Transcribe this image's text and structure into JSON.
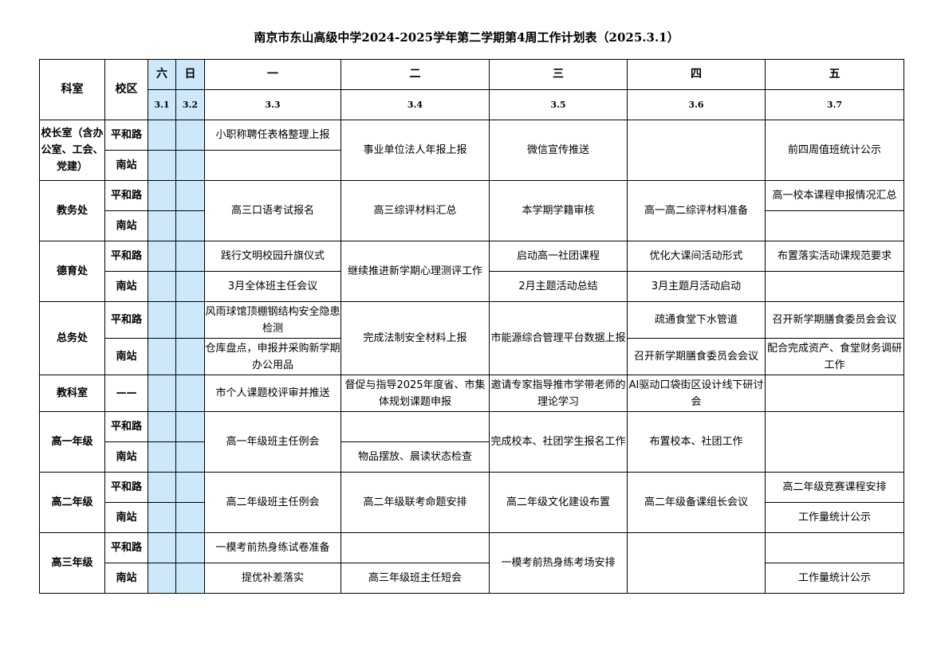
{
  "title": "南京市东山高级中学2024-2025学年第二学期第4周工作计划表（2025.3.1）",
  "header": {
    "dept_label": "科室",
    "campus_label": "校区",
    "days": [
      "六",
      "日",
      "一",
      "二",
      "三",
      "四",
      "五"
    ],
    "dates": [
      "3.1",
      "3.2",
      "3.3",
      "3.4",
      "3.5",
      "3.6",
      "3.7"
    ]
  },
  "colors": {
    "weekend_fill": "#cce8fa",
    "border": "#000000"
  },
  "rows": [
    {
      "dept": "校长室（含办公室、工会、党建）",
      "campuses": [
        "平和路",
        "南站"
      ],
      "cells": [
        {
          "top": "小职称聘任表格整理上报",
          "bottom": ""
        },
        {
          "merged": "事业单位法人年报上报"
        },
        {
          "merged": "微信宣传推送"
        },
        {
          "merged": ""
        },
        {
          "merged": "前四周值班统计公示"
        }
      ]
    },
    {
      "dept": "教务处",
      "campuses": [
        "平和路",
        "南站"
      ],
      "cells": [
        {
          "merged": "高三口语考试报名"
        },
        {
          "merged": "高三综评材料汇总"
        },
        {
          "merged": "本学期学籍审核"
        },
        {
          "merged": "高一高二综评材料准备"
        },
        {
          "top": "高一校本课程申报情况汇总",
          "bottom": ""
        }
      ]
    },
    {
      "dept": "德育处",
      "campuses": [
        "平和路",
        "南站"
      ],
      "cells": [
        {
          "top": "践行文明校园升旗仪式",
          "bottom": "3月全体班主任会议"
        },
        {
          "merged": "继续推进新学期心理测评工作"
        },
        {
          "top": "启动高一社团课程",
          "bottom": "2月主题活动总结"
        },
        {
          "top": "优化大课间活动形式",
          "bottom": "3月主题月活动启动"
        },
        {
          "top": "布置落实活动课规范要求",
          "bottom": ""
        }
      ]
    },
    {
      "dept": "总务处",
      "campuses": [
        "平和路",
        "南站"
      ],
      "tall": true,
      "cells": [
        {
          "top": "风雨球馆顶棚钢结构安全隐患检测",
          "bottom": "仓库盘点，申报并采购新学期办公用品"
        },
        {
          "merged": "完成法制安全材料上报"
        },
        {
          "merged": "市能源综合管理平台数据上报"
        },
        {
          "top": "疏通食堂下水管道",
          "bottom": "召开新学期膳食委员会会议"
        },
        {
          "top": "召开新学期膳食委员会会议",
          "bottom": "配合完成资产、食堂财务调研工作"
        }
      ]
    },
    {
      "dept": "教科室",
      "campuses": [
        "——"
      ],
      "tall": true,
      "cells": [
        {
          "merged": "市个人课题校评审并推送"
        },
        {
          "merged": "督促与指导2025年度省、市集体规划课题申报"
        },
        {
          "merged": "邀请专家指导推市学带老师的理论学习"
        },
        {
          "merged": "AI驱动口袋街区设计线下研讨会"
        },
        {
          "merged": ""
        }
      ]
    },
    {
      "dept": "高一年级",
      "campuses": [
        "平和路",
        "南站"
      ],
      "cells": [
        {
          "merged": "高一年级班主任例会"
        },
        {
          "top": "",
          "bottom": "物品摆放、晨读状态检查"
        },
        {
          "merged": "完成校本、社团学生报名工作"
        },
        {
          "merged": "布置校本、社团工作"
        },
        {
          "merged": ""
        }
      ]
    },
    {
      "dept": "高二年级",
      "campuses": [
        "平和路",
        "南站"
      ],
      "cells": [
        {
          "merged": "高二年级班主任例会"
        },
        {
          "merged": "高二年级联考命题安排"
        },
        {
          "merged": "高二年级文化建设布置"
        },
        {
          "merged": "高二年级备课组长会议"
        },
        {
          "top": "高二年级竞赛课程安排",
          "bottom": "工作量统计公示"
        }
      ]
    },
    {
      "dept": "高三年级",
      "campuses": [
        "平和路",
        "南站"
      ],
      "cells": [
        {
          "top": "一模考前热身练试卷准备",
          "bottom": "提优补差落实"
        },
        {
          "top": "",
          "bottom": "高三年级班主任短会"
        },
        {
          "merged": "一模考前热身练考场安排"
        },
        {
          "merged": ""
        },
        {
          "top": "",
          "bottom": "工作量统计公示"
        }
      ]
    }
  ]
}
